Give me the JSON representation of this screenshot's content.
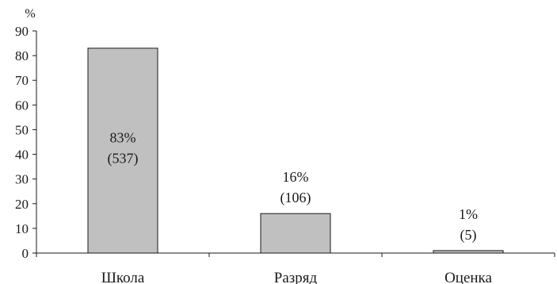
{
  "chart_data": {
    "type": "bar",
    "y_unit_label": "%",
    "categories": [
      "Школа",
      "Разряд",
      "Оценка"
    ],
    "values": [
      83,
      16,
      1
    ],
    "data_labels": [
      {
        "percent": "83%",
        "count": "(537)"
      },
      {
        "percent": "16%",
        "count": "(106)"
      },
      {
        "percent": "1%",
        "count": "(5)"
      }
    ],
    "ylim": [
      0,
      90
    ],
    "y_ticks": [
      0,
      10,
      20,
      30,
      40,
      50,
      60,
      70,
      80,
      90
    ],
    "grid": false,
    "legend": "none",
    "colors": {
      "bar_fill": "#c0c0c0",
      "bar_stroke": "#1a1a1a",
      "axis": "#1a1a1a"
    }
  }
}
